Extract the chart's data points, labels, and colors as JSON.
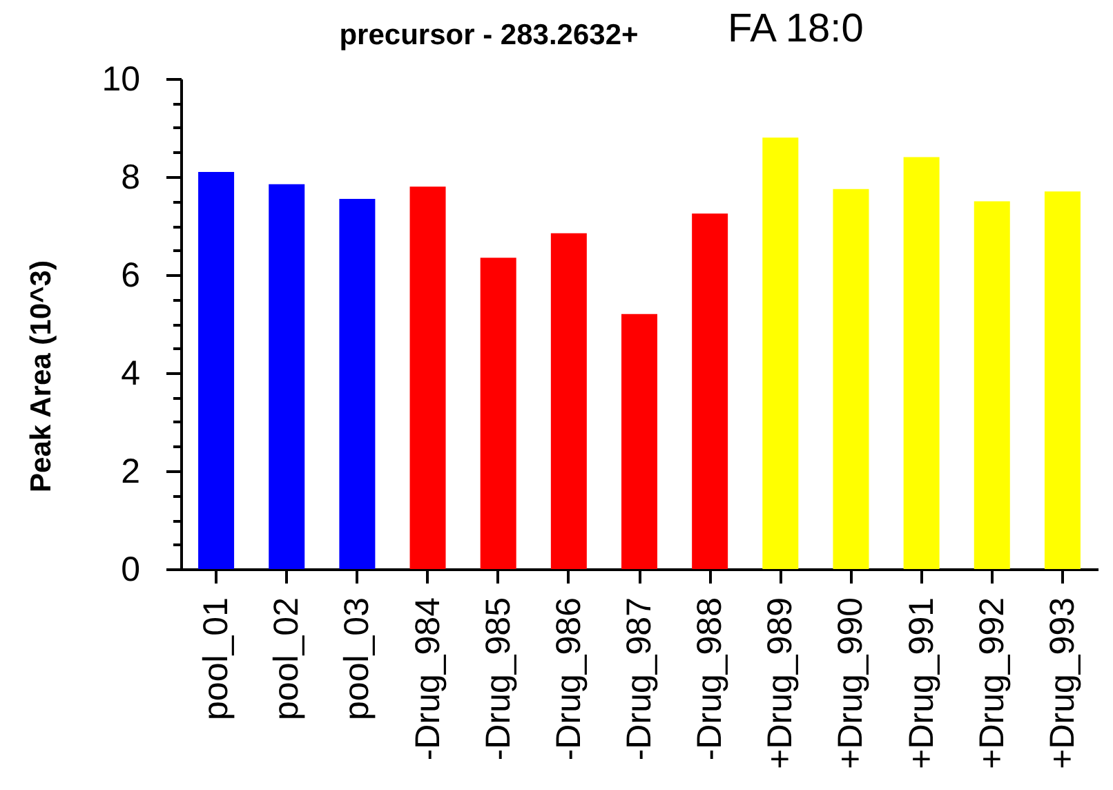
{
  "chart_data": {
    "type": "bar",
    "title": "precursor - 283.2632+",
    "subtitle": "FA 18:0",
    "ylabel": "Peak Area (10^3)",
    "categories": [
      "pool_01",
      "pool_02",
      "pool_03",
      "-Drug_984",
      "-Drug_985",
      "-Drug_986",
      "-Drug_987",
      "-Drug_988",
      "+Drug_989",
      "+Drug_990",
      "+Drug_991",
      "+Drug_992",
      "+Drug_993"
    ],
    "values": [
      8.1,
      7.85,
      7.55,
      7.8,
      6.35,
      6.85,
      5.2,
      7.25,
      8.8,
      7.75,
      8.4,
      7.5,
      7.7
    ],
    "colors": [
      "#0000ff",
      "#0000ff",
      "#0000ff",
      "#ff0000",
      "#ff0000",
      "#ff0000",
      "#ff0000",
      "#ff0000",
      "#ffff00",
      "#ffff00",
      "#ffff00",
      "#ffff00",
      "#ffff00"
    ],
    "ylim": [
      0,
      10
    ],
    "yticks": [
      0,
      {
        "value": 0.5,
        "label": null
      },
      {
        "value": 1,
        "label": null
      },
      {
        "value": 1.5,
        "label": null
      },
      2,
      {
        "value": 2.5,
        "label": null
      },
      {
        "value": 3,
        "label": null
      },
      {
        "value": 3.5,
        "label": null
      },
      4,
      {
        "value": 4.5,
        "label": null
      },
      {
        "value": 5,
        "label": null
      },
      {
        "value": 5.5,
        "label": null
      },
      6,
      {
        "value": 6.5,
        "label": null
      },
      {
        "value": 7,
        "label": null
      },
      {
        "value": 7.5,
        "label": null
      },
      8,
      {
        "value": 8.5,
        "label": null
      },
      {
        "value": 9,
        "label": null
      },
      {
        "value": 9.5,
        "label": null
      },
      10
    ]
  }
}
